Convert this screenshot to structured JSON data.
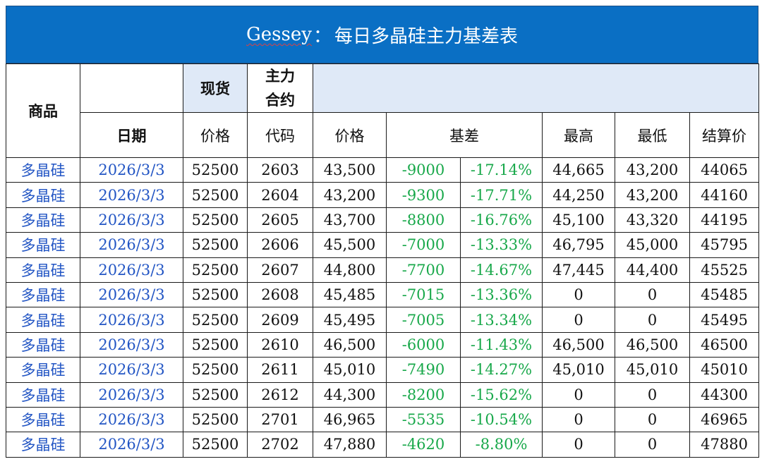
{
  "title": {
    "brand": "Gessey",
    "sep": "：",
    "text": "每日多晶硅主力基差表"
  },
  "headers": {
    "product": "商品",
    "spot": "现货",
    "main_contract_line1": "主力",
    "main_contract_line2": "合约",
    "date": "日期",
    "spot_price": "价格",
    "code": "代码",
    "price": "价格",
    "basis": "基差",
    "high": "最高",
    "low": "最低",
    "settlement": "结算价"
  },
  "rows": [
    {
      "product": "多晶硅",
      "date": "2026/3/3",
      "spot": "52500",
      "code": "2603",
      "price": "43,500",
      "basis": "-9000",
      "basis_pct": "-17.14%",
      "high": "44,665",
      "low": "43,200",
      "settle": "44065"
    },
    {
      "product": "多晶硅",
      "date": "2026/3/3",
      "spot": "52500",
      "code": "2604",
      "price": "43,200",
      "basis": "-9300",
      "basis_pct": "-17.71%",
      "high": "44,250",
      "low": "43,200",
      "settle": "44160"
    },
    {
      "product": "多晶硅",
      "date": "2026/3/3",
      "spot": "52500",
      "code": "2605",
      "price": "43,700",
      "basis": "-8800",
      "basis_pct": "-16.76%",
      "high": "45,100",
      "low": "43,320",
      "settle": "44195"
    },
    {
      "product": "多晶硅",
      "date": "2026/3/3",
      "spot": "52500",
      "code": "2606",
      "price": "45,500",
      "basis": "-7000",
      "basis_pct": "-13.33%",
      "high": "46,795",
      "low": "45,000",
      "settle": "45795"
    },
    {
      "product": "多晶硅",
      "date": "2026/3/3",
      "spot": "52500",
      "code": "2607",
      "price": "44,800",
      "basis": "-7700",
      "basis_pct": "-14.67%",
      "high": "47,445",
      "low": "44,400",
      "settle": "45525"
    },
    {
      "product": "多晶硅",
      "date": "2026/3/3",
      "spot": "52500",
      "code": "2608",
      "price": "45,485",
      "basis": "-7015",
      "basis_pct": "-13.36%",
      "high": "0",
      "low": "0",
      "settle": "45485"
    },
    {
      "product": "多晶硅",
      "date": "2026/3/3",
      "spot": "52500",
      "code": "2609",
      "price": "45,495",
      "basis": "-7005",
      "basis_pct": "-13.34%",
      "high": "0",
      "low": "0",
      "settle": "45495"
    },
    {
      "product": "多晶硅",
      "date": "2026/3/3",
      "spot": "52500",
      "code": "2610",
      "price": "46,500",
      "basis": "-6000",
      "basis_pct": "-11.43%",
      "high": "46,500",
      "low": "46,500",
      "settle": "46500"
    },
    {
      "product": "多晶硅",
      "date": "2026/3/3",
      "spot": "52500",
      "code": "2611",
      "price": "45,010",
      "basis": "-7490",
      "basis_pct": "-14.27%",
      "high": "45,010",
      "low": "45,010",
      "settle": "45010"
    },
    {
      "product": "多晶硅",
      "date": "2026/3/3",
      "spot": "52500",
      "code": "2612",
      "price": "44,300",
      "basis": "-8200",
      "basis_pct": "-15.62%",
      "high": "0",
      "low": "0",
      "settle": "44300"
    },
    {
      "product": "多晶硅",
      "date": "2026/3/3",
      "spot": "52500",
      "code": "2701",
      "price": "46,965",
      "basis": "-5535",
      "basis_pct": "-10.54%",
      "high": "0",
      "low": "0",
      "settle": "46965"
    },
    {
      "product": "多晶硅",
      "date": "2026/3/3",
      "spot": "52500",
      "code": "2702",
      "price": "47,880",
      "basis": "-4620",
      "basis_pct": "-8.80%",
      "high": "0",
      "low": "0",
      "settle": "47880"
    }
  ],
  "colors": {
    "title_bg": "#0a6fc4",
    "header_tint": "#dfe9f7",
    "product_text": "#2255c4",
    "basis_text": "#18a84a"
  }
}
